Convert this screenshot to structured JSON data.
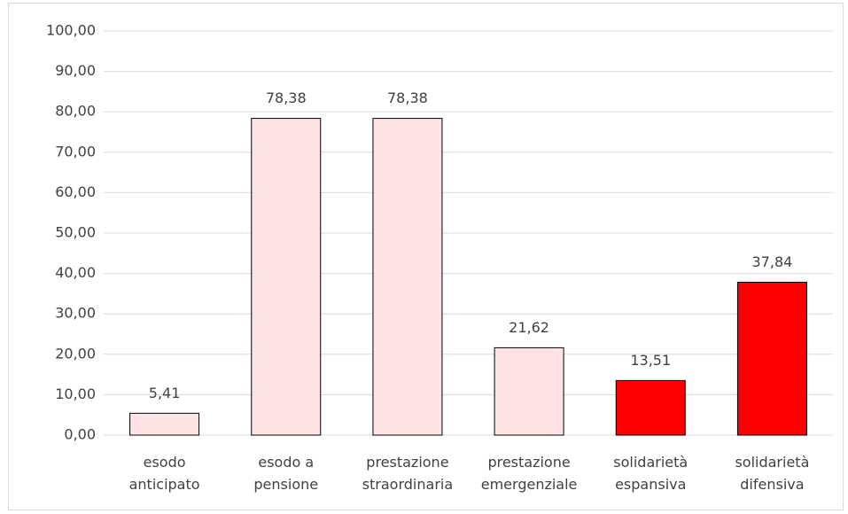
{
  "chart_data": {
    "type": "bar",
    "categories": [
      "esodo\nanticipato",
      "esodo a\npensione",
      "prestazione\nstraordinaria",
      "prestazione\nemergenziale",
      "solidarietà\nespansiva",
      "solidarietà\ndifensiva"
    ],
    "values": [
      5.41,
      78.38,
      78.38,
      21.62,
      13.51,
      37.84
    ],
    "value_labels": [
      "5,41",
      "78,38",
      "78,38",
      "21,62",
      "13,51",
      "37,84"
    ],
    "colors": [
      "#fde3e3",
      "#fde3e3",
      "#fde3e3",
      "#fde3e3",
      "#ff0000",
      "#ff0000"
    ],
    "ylim": [
      0,
      100
    ],
    "yticks": [
      {
        "value": 0,
        "label": "0,00"
      },
      {
        "value": 10,
        "label": "10,00"
      },
      {
        "value": 20,
        "label": "20,00"
      },
      {
        "value": 30,
        "label": "30,00"
      },
      {
        "value": 40,
        "label": "40,00"
      },
      {
        "value": 50,
        "label": "50,00"
      },
      {
        "value": 60,
        "label": "60,00"
      },
      {
        "value": 70,
        "label": "70,00"
      },
      {
        "value": 80,
        "label": "80,00"
      },
      {
        "value": 90,
        "label": "90,00"
      },
      {
        "value": 100,
        "label": "100,00"
      }
    ],
    "grid": true
  }
}
